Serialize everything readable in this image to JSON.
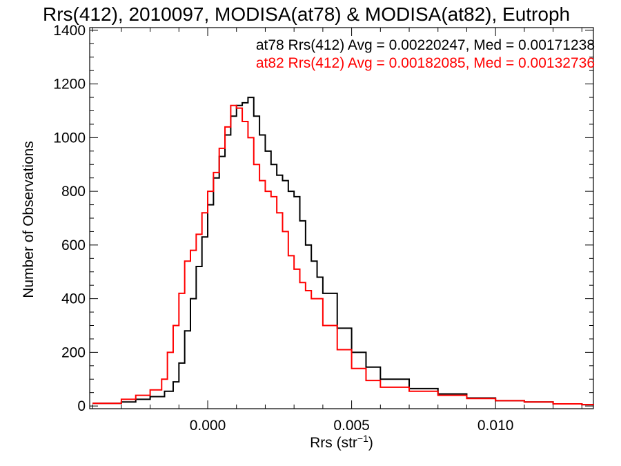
{
  "chart_data": {
    "type": "line",
    "title": "Rrs(412), 2010097, MODISA(at78) & MODISA(at82), Eutroph",
    "xlabel": "Rrs (str",
    "xlabel_sup": "−1",
    "xlabel_close": ")",
    "ylabel": "Number of Observations",
    "xlim": [
      -0.0041,
      0.0134
    ],
    "ylim": [
      -10,
      1410
    ],
    "x_ticks": [
      0.0,
      0.005,
      0.01
    ],
    "x_tick_labels": [
      "0.000",
      "0.005",
      "0.010"
    ],
    "y_ticks": [
      0,
      200,
      400,
      600,
      800,
      1000,
      1200,
      1400
    ],
    "y_tick_labels": [
      "0",
      "200",
      "400",
      "600",
      "800",
      "1000",
      "1200",
      "1400"
    ],
    "grid": false,
    "legend_position": "top-right",
    "series": [
      {
        "name": "at78",
        "color": "#000000",
        "legend": "at78 Rrs(412) Avg = 0.00220247, Med = 0.00171238",
        "x": [
          -0.004,
          -0.003,
          -0.0025,
          -0.002,
          -0.0015,
          -0.0012,
          -0.001,
          -0.0008,
          -0.0006,
          -0.0004,
          -0.0002,
          0.0,
          0.0002,
          0.0004,
          0.0006,
          0.0008,
          0.001,
          0.0012,
          0.0014,
          0.0016,
          0.0018,
          0.002,
          0.0022,
          0.0024,
          0.0026,
          0.0028,
          0.003,
          0.0032,
          0.0034,
          0.0036,
          0.0038,
          0.004,
          0.0045,
          0.005,
          0.0055,
          0.006,
          0.007,
          0.008,
          0.009,
          0.01,
          0.011,
          0.012,
          0.013,
          0.0134
        ],
        "y": [
          10,
          15,
          25,
          35,
          55,
          90,
          160,
          280,
          400,
          520,
          630,
          750,
          850,
          930,
          1010,
          1080,
          1120,
          1130,
          1150,
          1080,
          1010,
          950,
          900,
          860,
          840,
          800,
          780,
          690,
          600,
          540,
          480,
          420,
          290,
          200,
          145,
          100,
          65,
          45,
          30,
          20,
          15,
          8,
          5,
          3
        ]
      },
      {
        "name": "at82",
        "color": "#ff0000",
        "legend": "at82 Rrs(412) Avg = 0.00182085, Med = 0.00132736",
        "x": [
          -0.004,
          -0.003,
          -0.0025,
          -0.002,
          -0.0016,
          -0.0014,
          -0.0012,
          -0.001,
          -0.0008,
          -0.0006,
          -0.0004,
          -0.0002,
          0.0,
          0.0002,
          0.0004,
          0.0006,
          0.0008,
          0.001,
          0.0012,
          0.0014,
          0.0016,
          0.0018,
          0.002,
          0.0022,
          0.0024,
          0.0026,
          0.0028,
          0.003,
          0.0032,
          0.0034,
          0.0036,
          0.004,
          0.0045,
          0.005,
          0.0055,
          0.006,
          0.007,
          0.008,
          0.009,
          0.01,
          0.011,
          0.012,
          0.013,
          0.0134
        ],
        "y": [
          10,
          25,
          40,
          60,
          100,
          200,
          300,
          420,
          540,
          580,
          640,
          720,
          800,
          870,
          960,
          1040,
          1120,
          1110,
          1060,
          1000,
          900,
          840,
          800,
          780,
          720,
          650,
          560,
          510,
          460,
          430,
          400,
          300,
          210,
          140,
          95,
          70,
          55,
          40,
          28,
          20,
          15,
          8,
          5,
          3
        ]
      }
    ]
  }
}
